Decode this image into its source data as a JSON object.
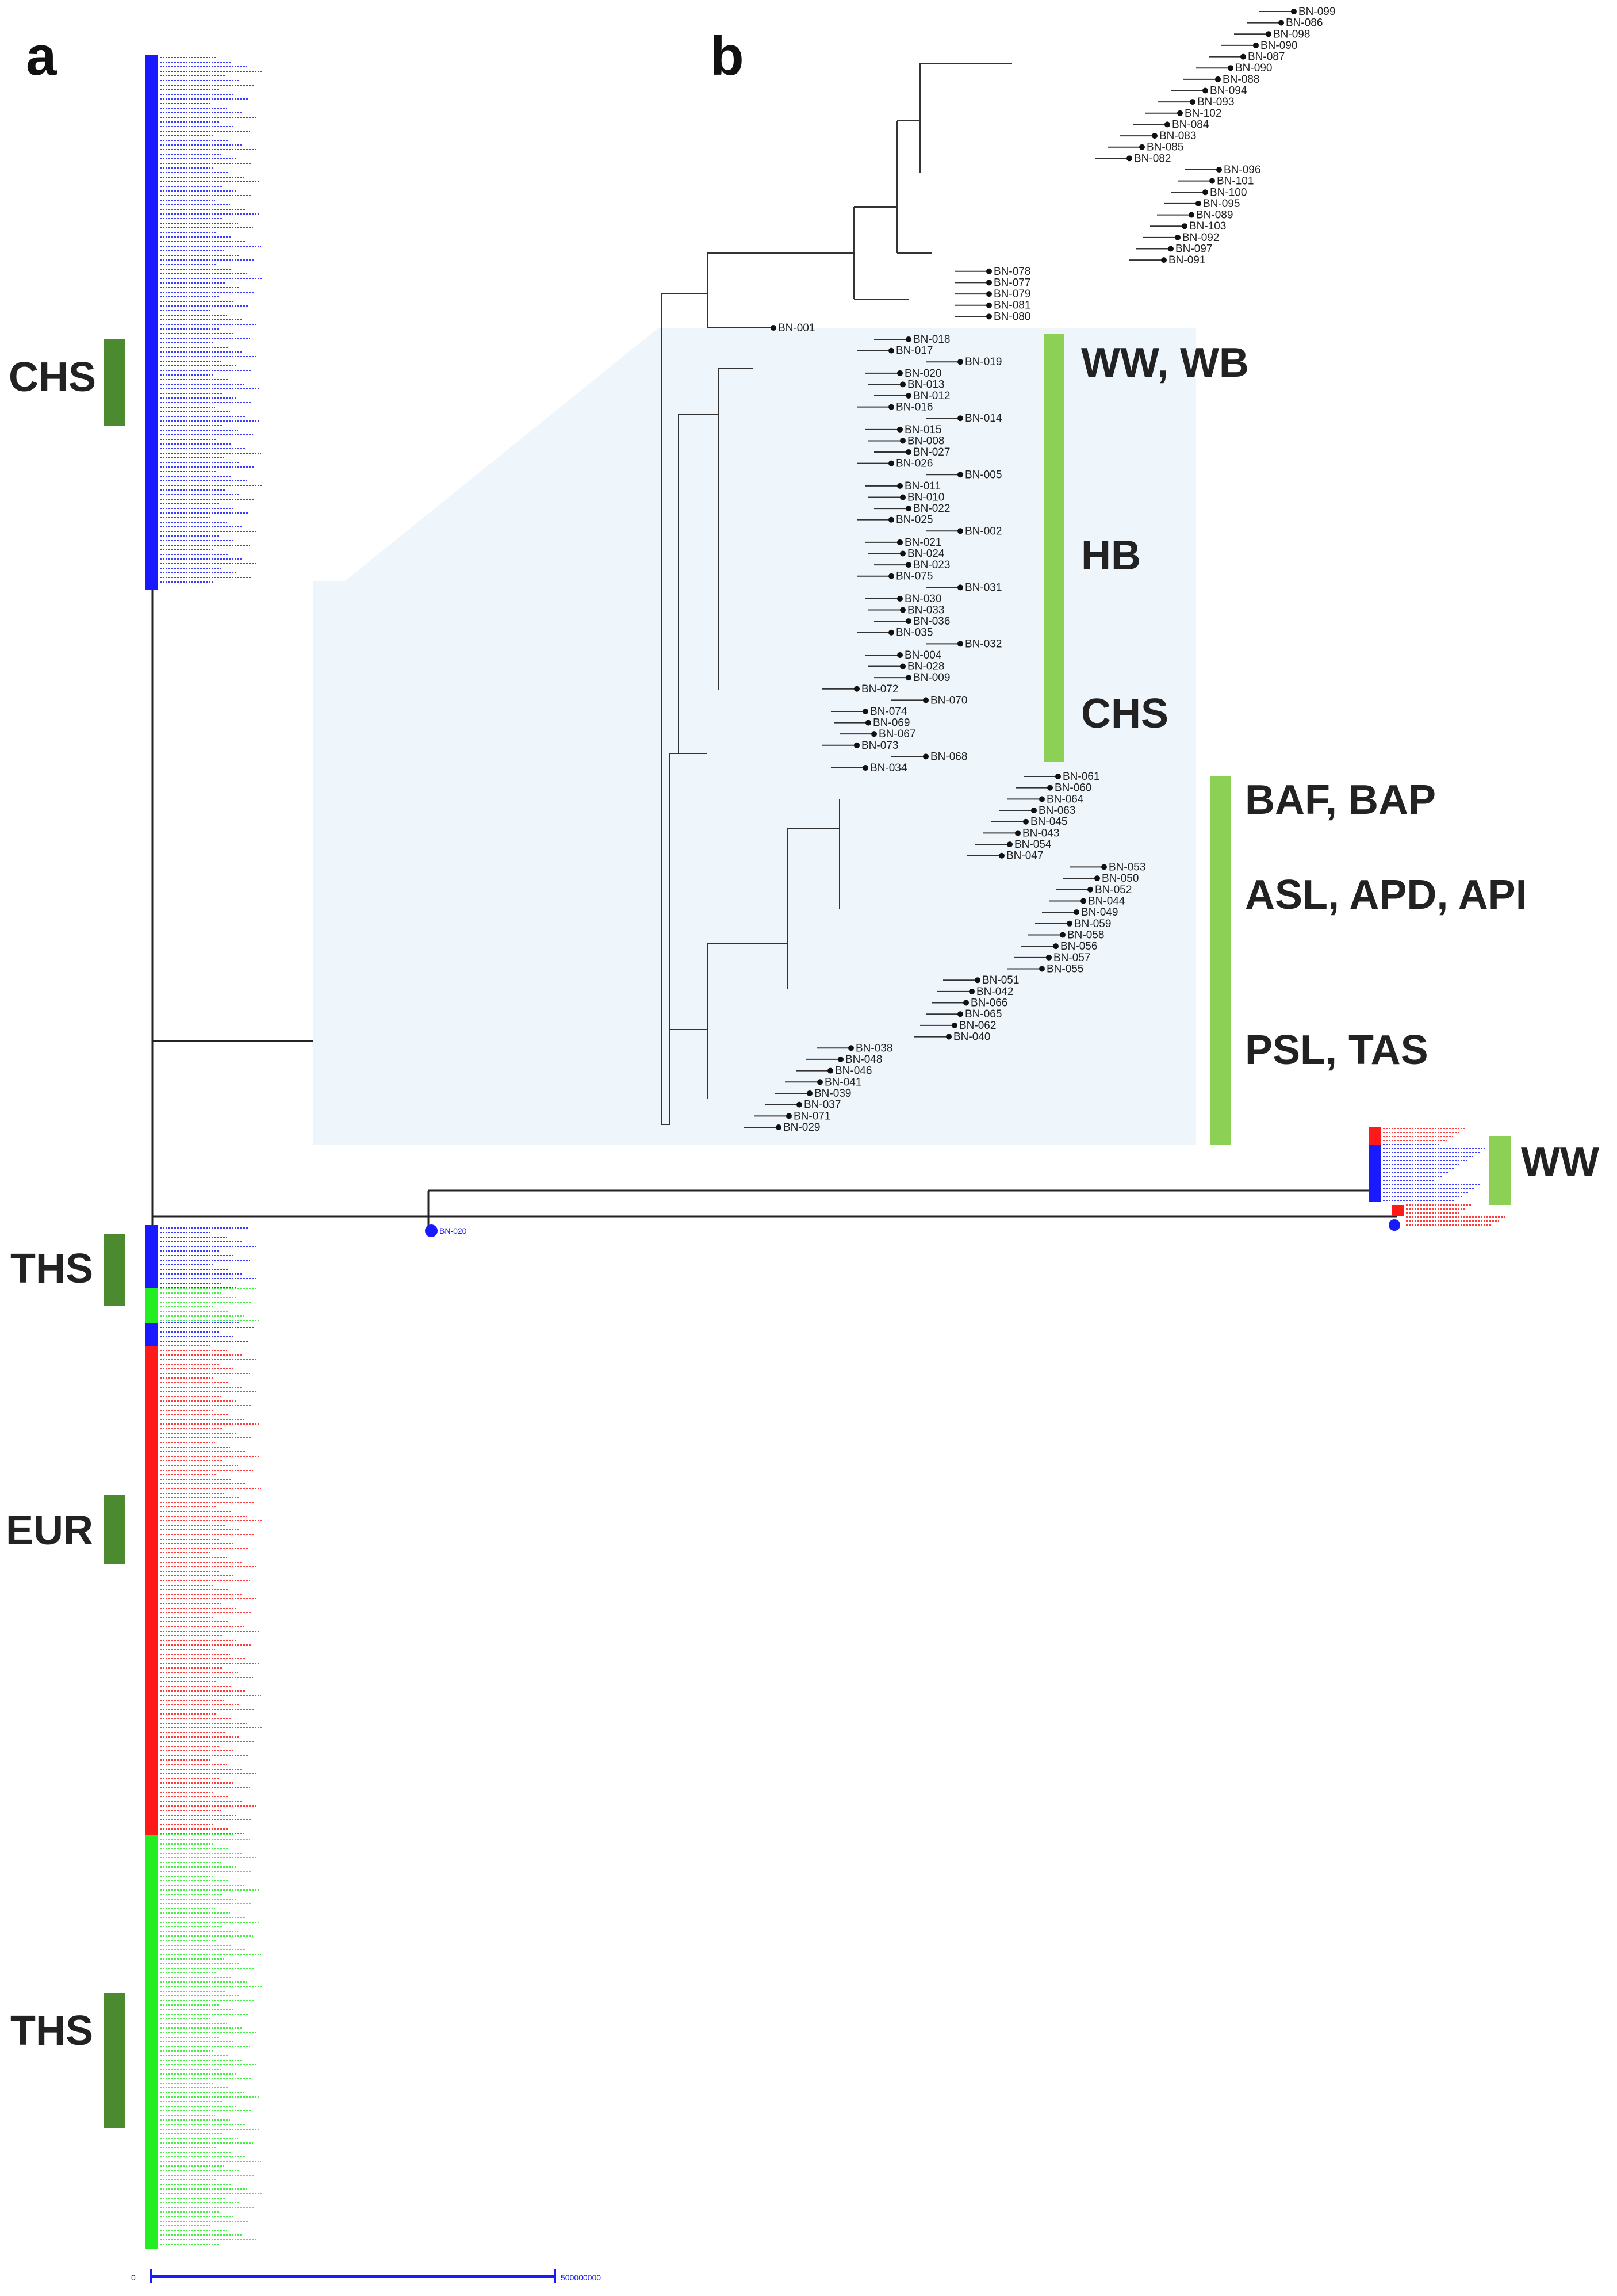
{
  "panels": {
    "a": "a",
    "b": "b"
  },
  "panel_a": {
    "group_labels": [
      "CHS",
      "THS",
      "EUR",
      "THS"
    ],
    "outlier_label": "WW",
    "outlier_node": "BN-020",
    "scale_bar": {
      "start": "0",
      "end": "500000000"
    },
    "colors": {
      "blue": "#1a1aff",
      "green": "#22ee22",
      "red": "#ff1a1a",
      "bar": "#4b8a2e"
    }
  },
  "panel_b": {
    "subtree_top": [
      "BN-099",
      "BN-086",
      "BN-098",
      "BN-090",
      "BN-087",
      "BN-090",
      "BN-088",
      "BN-094",
      "BN-093",
      "BN-102",
      "BN-084",
      "BN-083",
      "BN-085",
      "BN-082",
      "BN-096",
      "BN-101",
      "BN-100",
      "BN-095",
      "BN-089",
      "BN-103",
      "BN-092",
      "BN-097",
      "BN-091",
      "BN-078",
      "BN-077",
      "BN-079",
      "BN-081",
      "BN-080",
      "BN-001"
    ],
    "subtree_mid": [
      "BN-018",
      "BN-017",
      "BN-019",
      "BN-020",
      "BN-013",
      "BN-012",
      "BN-016",
      "BN-014",
      "BN-015",
      "BN-008",
      "BN-027",
      "BN-026",
      "BN-005",
      "BN-011",
      "BN-010",
      "BN-022",
      "BN-025",
      "BN-002",
      "BN-021",
      "BN-024",
      "BN-023",
      "BN-075",
      "BN-031",
      "BN-030",
      "BN-033",
      "BN-036",
      "BN-035",
      "BN-032",
      "BN-004",
      "BN-028",
      "BN-009",
      "BN-072",
      "BN-070",
      "BN-074",
      "BN-069",
      "BN-067",
      "BN-073",
      "BN-068",
      "BN-034"
    ],
    "subtree_low": [
      "BN-061",
      "BN-060",
      "BN-064",
      "BN-063",
      "BN-045",
      "BN-043",
      "BN-054",
      "BN-047",
      "BN-053",
      "BN-050",
      "BN-052",
      "BN-044",
      "BN-049",
      "BN-059",
      "BN-058",
      "BN-056",
      "BN-057",
      "BN-055",
      "BN-051",
      "BN-042",
      "BN-066",
      "BN-065",
      "BN-062",
      "BN-040",
      "BN-038",
      "BN-048",
      "BN-046",
      "BN-041",
      "BN-039",
      "BN-037",
      "BN-071",
      "BN-029"
    ],
    "clade_labels": [
      "WW, WB",
      "HB",
      "CHS",
      "BAF, BAP",
      "ASL, APD, API",
      "PSL, TAS"
    ],
    "colors": {
      "bar": "#8cd155",
      "inset_bg": "#eef5fb"
    }
  }
}
